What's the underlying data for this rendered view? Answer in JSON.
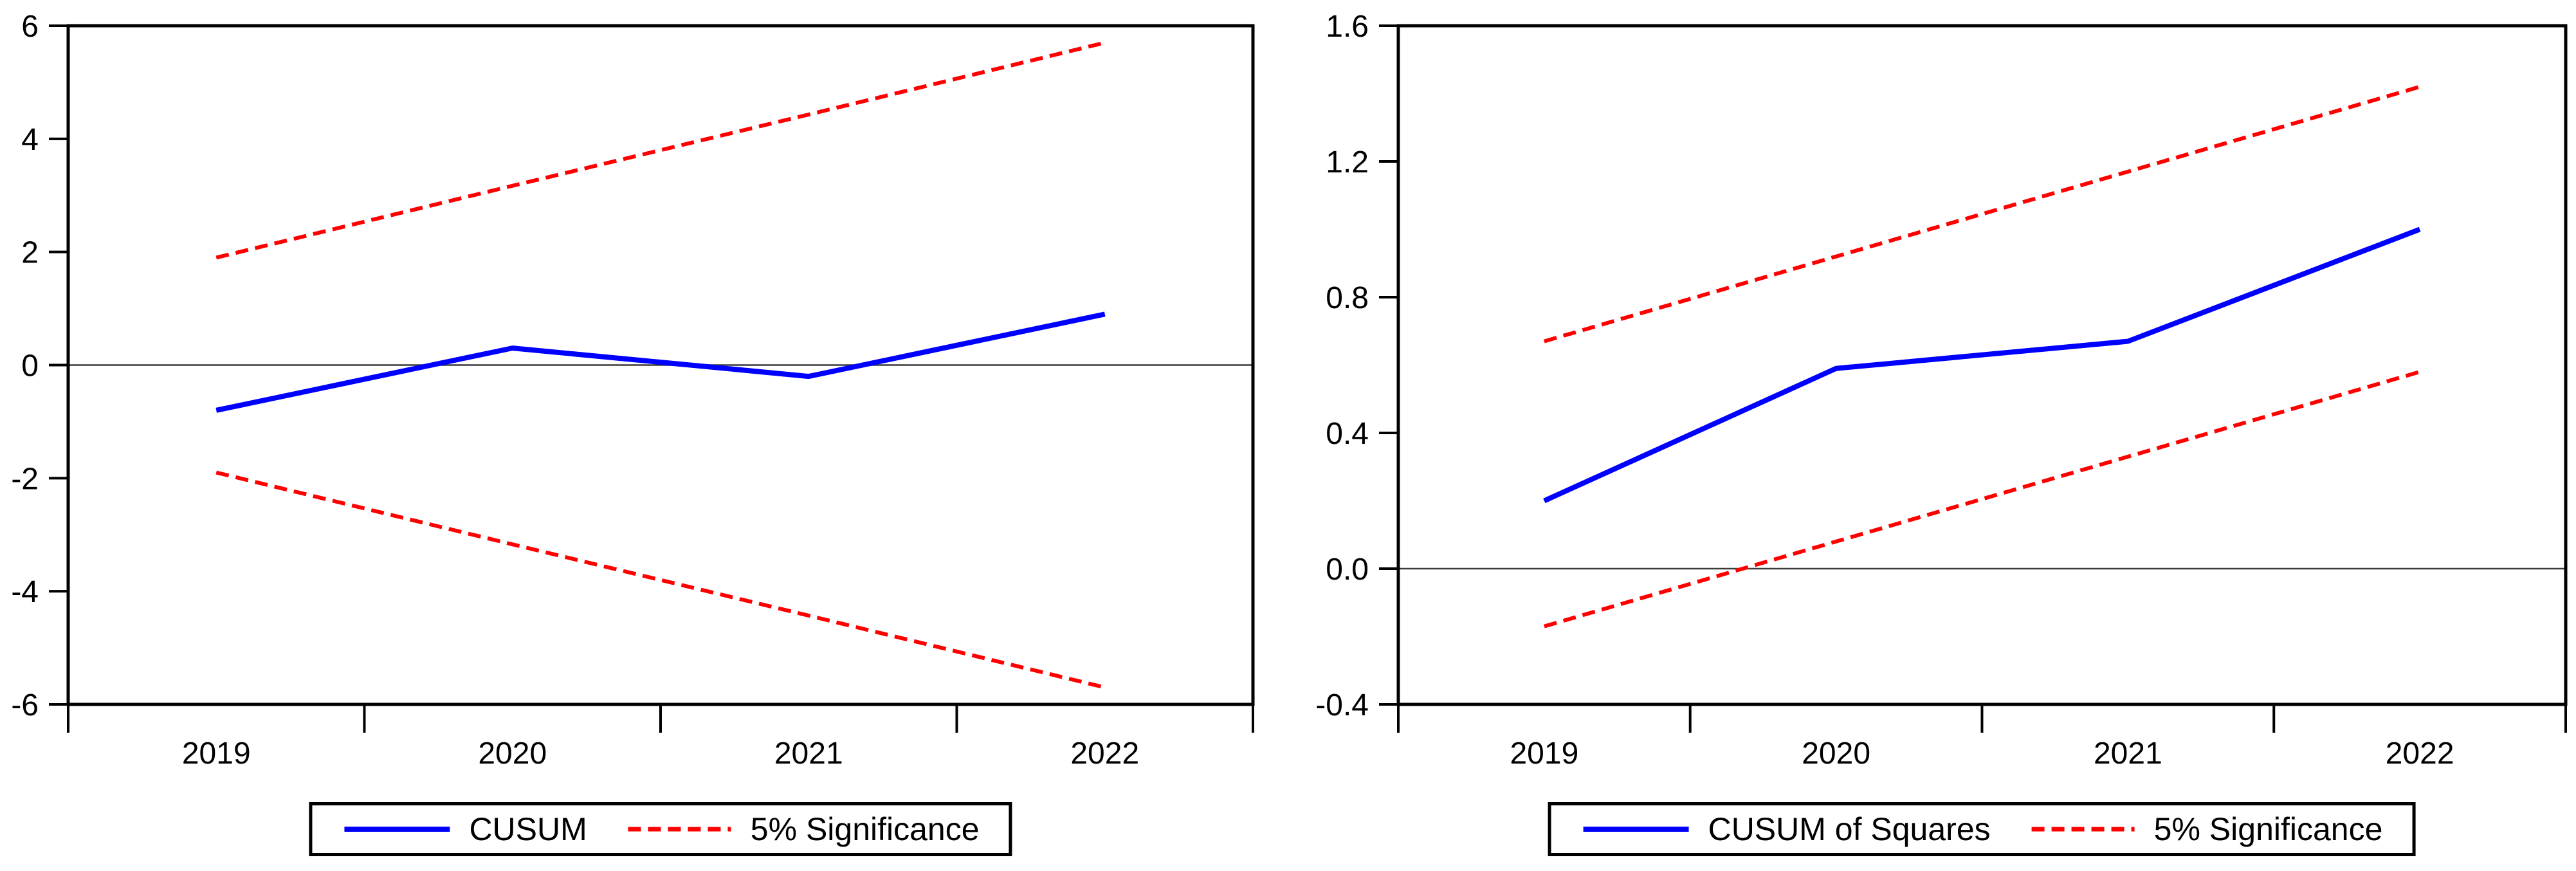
{
  "colors": {
    "background": "#ffffff",
    "axis": "#000000",
    "zero_line": "#3c3c3c",
    "cusum_blue": "#0000ff",
    "significance_red": "#ff0000"
  },
  "chart_data": [
    {
      "type": "line",
      "title": "",
      "xlabel": "",
      "ylabel": "",
      "x": [
        2019,
        2020,
        2021,
        2022
      ],
      "x_tick_labels": [
        "2019",
        "2020",
        "2021",
        "2022"
      ],
      "ylim": [
        -6,
        6
      ],
      "yticks": [
        {
          "value": 6,
          "label": "6"
        },
        {
          "value": 4,
          "label": "4"
        },
        {
          "value": 2,
          "label": "2"
        },
        {
          "value": 0,
          "label": "0"
        },
        {
          "value": -2,
          "label": "-2"
        },
        {
          "value": -4,
          "label": "-4"
        },
        {
          "value": -6,
          "label": "-6"
        }
      ],
      "grid": false,
      "zero_line": true,
      "legend_position": "bottom",
      "series": [
        {
          "name": "CUSUM",
          "color": "#0000ff",
          "line_style": "solid",
          "values": [
            -0.8,
            0.3,
            -0.2,
            0.9
          ]
        },
        {
          "name": "5% Significance upper",
          "color": "#ff0000",
          "line_style": "dashed",
          "values": [
            1.9,
            3.17,
            4.43,
            5.7
          ]
        },
        {
          "name": "5% Significance lower",
          "color": "#ff0000",
          "line_style": "dashed",
          "values": [
            -1.9,
            -3.17,
            -4.43,
            -5.7
          ]
        }
      ],
      "legend": [
        {
          "label": "CUSUM",
          "color": "#0000ff",
          "line_style": "solid"
        },
        {
          "label": "5% Significance",
          "color": "#ff0000",
          "line_style": "dashed"
        }
      ]
    },
    {
      "type": "line",
      "title": "",
      "xlabel": "",
      "ylabel": "",
      "x": [
        2019,
        2020,
        2021,
        2022
      ],
      "x_tick_labels": [
        "2019",
        "2020",
        "2021",
        "2022"
      ],
      "ylim": [
        -0.4,
        1.6
      ],
      "yticks": [
        {
          "value": 1.6,
          "label": "1.6"
        },
        {
          "value": 1.2,
          "label": "1.2"
        },
        {
          "value": 0.8,
          "label": "0.8"
        },
        {
          "value": 0.4,
          "label": "0.4"
        },
        {
          "value": 0.0,
          "label": "0.0"
        },
        {
          "value": -0.4,
          "label": "-0.4"
        }
      ],
      "grid": false,
      "zero_line": true,
      "legend_position": "bottom",
      "series": [
        {
          "name": "CUSUM of Squares",
          "color": "#0000ff",
          "line_style": "solid",
          "values": [
            0.2,
            0.59,
            0.67,
            1.0
          ]
        },
        {
          "name": "5% Significance upper",
          "color": "#ff0000",
          "line_style": "dashed",
          "values": [
            0.67,
            0.92,
            1.17,
            1.42
          ]
        },
        {
          "name": "5% Significance lower",
          "color": "#ff0000",
          "line_style": "dashed",
          "values": [
            -0.17,
            0.08,
            0.33,
            0.58
          ]
        }
      ],
      "legend": [
        {
          "label": "CUSUM of Squares",
          "color": "#0000ff",
          "line_style": "solid"
        },
        {
          "label": "5% Significance",
          "color": "#ff0000",
          "line_style": "dashed"
        }
      ]
    }
  ]
}
